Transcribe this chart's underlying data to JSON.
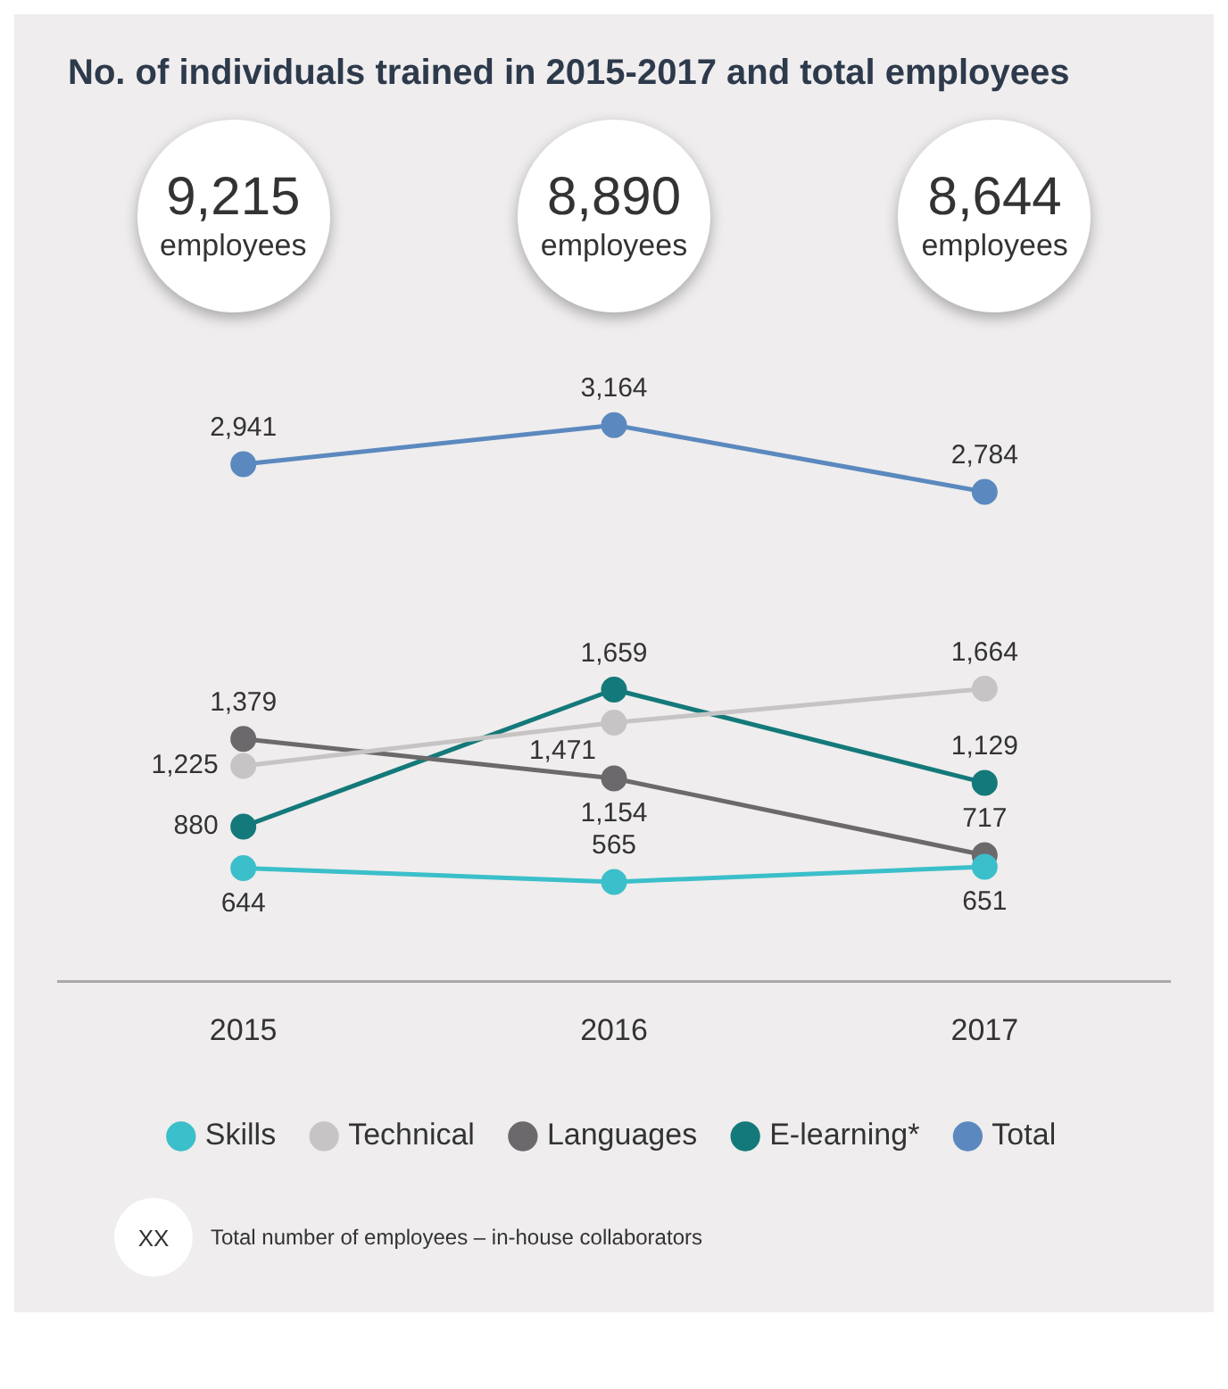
{
  "chart_data": {
    "type": "line",
    "title": "No. of individuals trained in 2015-2017 and total employees",
    "categories": [
      "2015",
      "2016",
      "2017"
    ],
    "series": [
      {
        "name": "Skills",
        "color": "#3bbfca",
        "values": [
          644,
          565,
          651
        ],
        "value_labels": [
          "644",
          "565",
          "651"
        ]
      },
      {
        "name": "Technical",
        "color": "#c6c4c4",
        "values": [
          1225,
          1471,
          1664
        ],
        "value_labels": [
          "1,225",
          "1,471",
          "1,664"
        ]
      },
      {
        "name": "Languages",
        "color": "#6b696b",
        "values": [
          1379,
          1154,
          717
        ],
        "value_labels": [
          "1,379",
          "1,154",
          "717"
        ]
      },
      {
        "name": "E-learning*",
        "color": "#14797a",
        "values": [
          880,
          1659,
          1129
        ],
        "value_labels": [
          "880",
          "1,659",
          "1,129"
        ]
      },
      {
        "name": "Total",
        "color": "#5b89bf",
        "values": [
          2941,
          3164,
          2784
        ],
        "value_labels": [
          "2,941",
          "3,164",
          "2,784"
        ]
      }
    ],
    "annotations": [
      "9,215 employees",
      "8,890 employees",
      "8,644 employees",
      "XX",
      "Total number of employees – in-house collaborators"
    ],
    "tick_labels": "x",
    "grid": false,
    "legend": "bottom",
    "marker": "circle",
    "line_style": "solid"
  }
}
